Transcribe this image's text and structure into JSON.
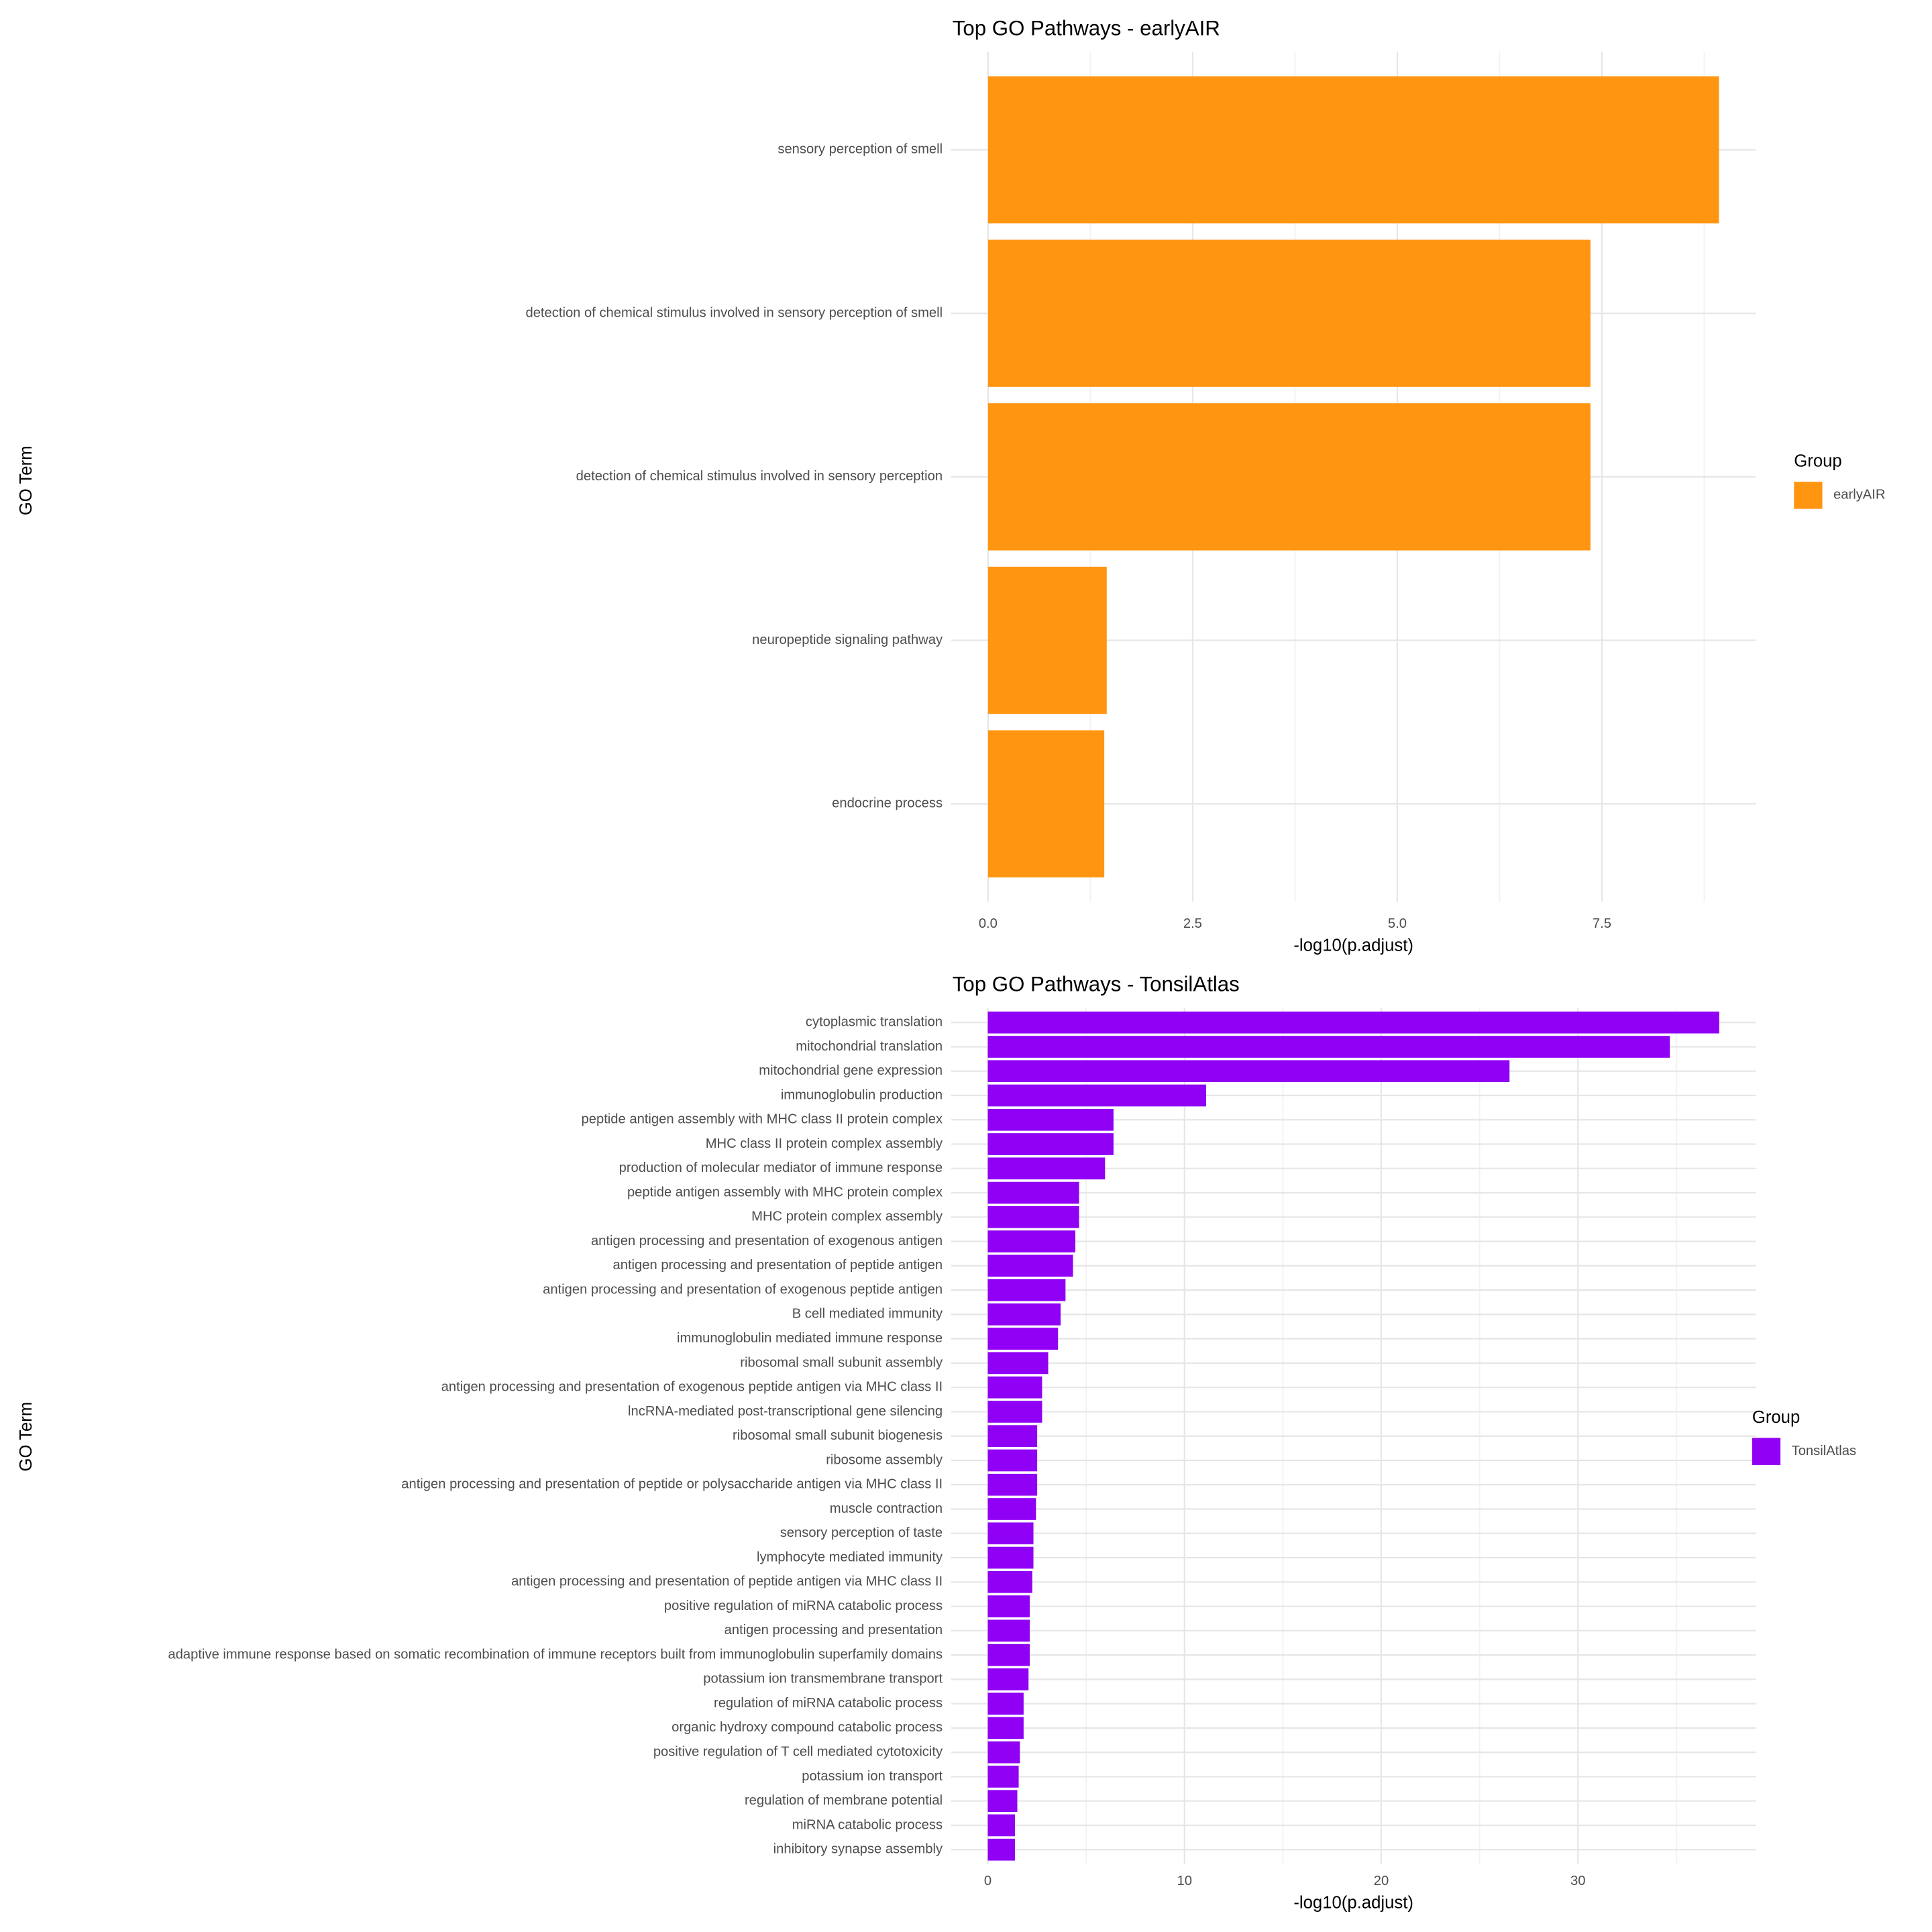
{
  "chart_data": [
    {
      "type": "barh",
      "title": "Top GO Pathways - earlyAIR",
      "x_label": "-log10(p.adjust)",
      "y_label": "GO Term",
      "categories": [
        "sensory perception of smell",
        "detection of chemical stimulus involved in sensory perception of smell",
        "detection of chemical stimulus involved in sensory perception",
        "neuropeptide signaling pathway",
        "endocrine process"
      ],
      "series": [
        {
          "name": "earlyAIR",
          "color": "#ff9510",
          "values": [
            8.93,
            7.36,
            7.36,
            1.45,
            1.42
          ]
        }
      ],
      "legend_title": "Group",
      "xlim": [
        -0.45,
        9.38
      ],
      "xticks": [
        {
          "value": 0,
          "label": "0.0"
        },
        2.5,
        {
          "value": 5,
          "label": "5.0"
        },
        7.5
      ],
      "x_minor_ticks": [
        1.25,
        3.75,
        6.25,
        8.75
      ],
      "grid": true
    },
    {
      "type": "barh",
      "title": "Top GO Pathways - TonsilAtlas",
      "x_label": "-log10(p.adjust)",
      "y_label": "GO Term",
      "categories": [
        "cytoplasmic translation",
        "mitochondrial translation",
        "mitochondrial gene expression",
        "immunoglobulin production",
        "peptide antigen assembly with MHC class II protein complex",
        "MHC class II protein complex assembly",
        "production of molecular mediator of immune response",
        "peptide antigen assembly with MHC protein complex",
        "MHC protein complex assembly",
        "antigen processing and presentation of exogenous antigen",
        "antigen processing and presentation of peptide antigen",
        "antigen processing and presentation of exogenous peptide antigen",
        "B cell mediated immunity",
        "immunoglobulin mediated immune response",
        "ribosomal small subunit assembly",
        "antigen processing and presentation of exogenous peptide antigen via MHC class II",
        "lncRNA-mediated post-transcriptional gene silencing",
        "ribosomal small subunit biogenesis",
        "ribosome assembly",
        "antigen processing and presentation of peptide or polysaccharide antigen via MHC class II",
        "muscle contraction",
        "sensory perception of taste",
        "lymphocyte mediated immunity",
        "antigen processing and presentation of peptide antigen via MHC class II",
        "positive regulation of miRNA catabolic process",
        "antigen processing and presentation",
        "adaptive immune response based on somatic recombination of immune receptors built from immunoglobulin superfamily domains",
        "potassium ion transmembrane transport",
        "regulation of miRNA catabolic process",
        "organic hydroxy compound catabolic process",
        "positive regulation of T cell mediated cytotoxicity",
        "potassium ion transport",
        "regulation of membrane potential",
        "miRNA catabolic process",
        "inhibitory synapse assembly"
      ],
      "series": [
        {
          "name": "TonsilAtlas",
          "color": "#8f00f5",
          "values": [
            37.18,
            34.67,
            26.52,
            11.1,
            6.39,
            6.39,
            5.96,
            4.64,
            4.64,
            4.45,
            4.33,
            3.95,
            3.7,
            3.57,
            3.07,
            2.76,
            2.76,
            2.51,
            2.51,
            2.51,
            2.45,
            2.32,
            2.32,
            2.26,
            2.13,
            2.13,
            2.13,
            2.07,
            1.82,
            1.82,
            1.63,
            1.57,
            1.5,
            1.38,
            1.38
          ]
        }
      ],
      "legend_title": "Group",
      "xlim": [
        -1.86,
        39.04
      ],
      "xticks": [
        0,
        10,
        20,
        30
      ],
      "x_minor_ticks": [
        5,
        15,
        25,
        35
      ],
      "grid": true
    }
  ]
}
